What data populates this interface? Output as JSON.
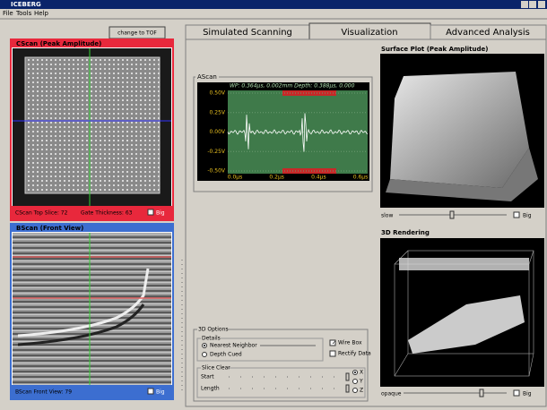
{
  "window": {
    "title": "ICEBERG"
  },
  "menu": [
    "File",
    "Tools",
    "Help"
  ],
  "left_panel": {
    "button": "change to TOF",
    "cscan": {
      "title": "CScan (Peak Amplitude)",
      "status": [
        "CScan Top Slice: 72",
        "Gate Thickness: 63"
      ],
      "checkbox": "Big"
    },
    "bscan": {
      "title": "BScan (Front View)",
      "status": "BScan Front View: 79",
      "checkbox": "Big"
    }
  },
  "tabs": [
    "Simulated Scanning",
    "Visualization",
    "Advanced Analysis"
  ],
  "ascan": {
    "title": "AScan",
    "readout": "WP: 0.364µs, 0.002mm  Depth: 0.388µs, 0.000",
    "y_labels": [
      "0.50V",
      "0.25V",
      "0.00V",
      "-0.25V",
      "-0.50V"
    ],
    "x_labels": [
      "0.0µs",
      "0.2µs",
      "0.4µs",
      "0.6µs"
    ]
  },
  "surface_plot": {
    "title": "Surface Plot (Peak Amplitude)",
    "slider_label": "slow",
    "checkbox": "Big"
  },
  "rendering": {
    "title": "3D Rendering",
    "slider_label": "opaque",
    "checkbox": "Big"
  },
  "options": {
    "title": "3D Options",
    "details": "Details",
    "radios": [
      "Nearest Neighbor",
      "Depth Cued"
    ],
    "checkboxes": [
      "Wire Box",
      "Rectify Data"
    ],
    "slice_title": "Slice Clear",
    "sliders": [
      "Start",
      "Length"
    ],
    "axes": [
      "X",
      "Y",
      "Z"
    ]
  }
}
